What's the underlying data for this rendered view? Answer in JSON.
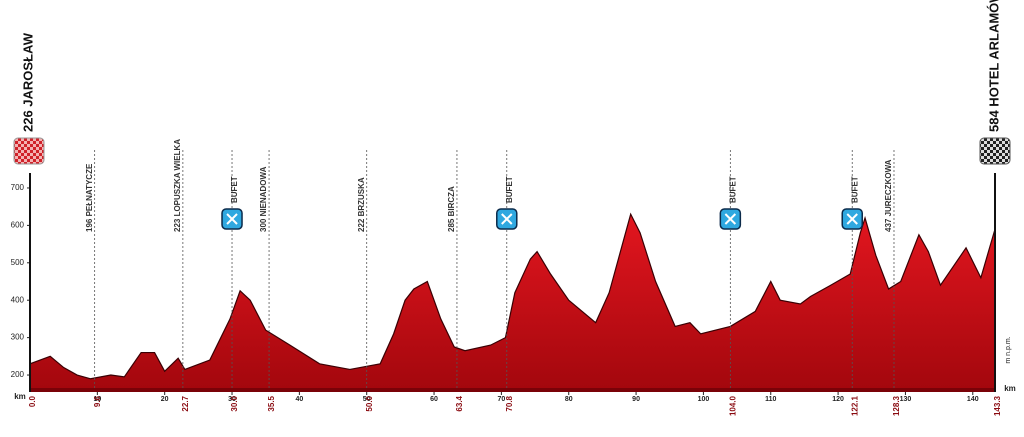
{
  "chart_data": {
    "type": "area",
    "start": "226 JAROSŁAW",
    "finish": "584 HOTEL ARLAMÓW",
    "x_unit": "km",
    "y_unit": "m n.p.m.",
    "color": "#d2141c",
    "x": [
      0,
      3,
      5,
      7,
      9,
      12,
      14,
      16.5,
      18.5,
      20,
      22,
      23,
      26.7,
      29.7,
      31.2,
      32.7,
      35,
      38.6,
      43,
      47.5,
      50.5,
      52,
      54,
      55.7,
      57,
      59,
      61,
      63,
      64.6,
      68.4,
      70.6,
      72,
      74.3,
      75.3,
      77.3,
      80,
      84,
      86,
      89.2,
      90.6,
      92.9,
      95.8,
      98,
      99.6,
      104,
      107.7,
      110,
      111.4,
      114.4,
      115.9,
      118.9,
      121.8,
      123.3,
      124,
      125.6,
      127.5,
      129.3,
      132,
      133.4,
      135.2,
      139,
      141.2,
      143.3
    ],
    "values": [
      230,
      250,
      220,
      200,
      190,
      200,
      195,
      260,
      260,
      210,
      245,
      215,
      240,
      350,
      425,
      400,
      320,
      280,
      230,
      215,
      225,
      230,
      310,
      400,
      430,
      450,
      350,
      275,
      265,
      280,
      300,
      420,
      510,
      530,
      470,
      400,
      340,
      420,
      630,
      580,
      450,
      330,
      340,
      310,
      330,
      370,
      450,
      400,
      390,
      410,
      440,
      470,
      580,
      620,
      520,
      430,
      450,
      575,
      530,
      440,
      540,
      460,
      590
    ],
    "xlim": [
      0,
      143.3
    ],
    "ylim": [
      160,
      740
    ],
    "xticks": [
      10,
      20,
      30,
      40,
      50,
      60,
      70,
      80,
      90,
      100,
      110,
      120,
      130,
      140
    ],
    "yticks": [
      200,
      300,
      400,
      500,
      600,
      700
    ],
    "waypoints": [
      {
        "km": 0,
        "km_label": "0.0"
      },
      {
        "km": 9.6,
        "km_label": "9.6",
        "label": "196 PEŁNATYCZE"
      },
      {
        "km": 22.7,
        "km_label": "22.7",
        "label": "223 LOPUSZKA WIELKA"
      },
      {
        "km": 30,
        "km_label": "30.0",
        "label": "BUFET",
        "feed": true
      },
      {
        "km": 35.5,
        "km_label": "35.5",
        "label": "300 NIENADOWA"
      },
      {
        "km": 50,
        "km_label": "50.0",
        "label": "222 BRZUSKA"
      },
      {
        "km": 63.4,
        "km_label": "63.4",
        "label": "285 BIRCZA"
      },
      {
        "km": 70.8,
        "km_label": "70.8",
        "label": "BUFET",
        "feed": true
      },
      {
        "km": 104,
        "km_label": "104.0",
        "label": "BUFET",
        "feed": true
      },
      {
        "km": 122.1,
        "km_label": "122.1",
        "label": "BUFET",
        "feed": true
      },
      {
        "km": 128.3,
        "km_label": "128.3",
        "label": "437 JURECZKOWA"
      },
      {
        "km": 143.3,
        "km_label": "143.3"
      }
    ]
  }
}
